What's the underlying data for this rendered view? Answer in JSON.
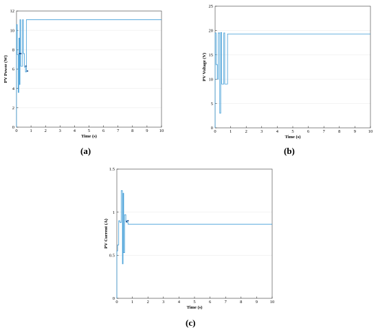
{
  "chart_data": [
    {
      "type": "line",
      "panel_label": "(a)",
      "xlabel": "Time (s)",
      "ylabel": "PV Power (W)",
      "xlim": [
        0,
        10
      ],
      "ylim": [
        0,
        12
      ],
      "xticks": [
        "0",
        "1",
        "2",
        "3",
        "4",
        "5",
        "6",
        "7",
        "8",
        "9",
        "10"
      ],
      "yticks": [
        "0",
        "2",
        "4",
        "6",
        "8",
        "10",
        "12"
      ],
      "grid": true,
      "line_color": "#3d9bd6",
      "series": [
        {
          "x": [
            0,
            0,
            0.05,
            0.05,
            0.12,
            0.12,
            0.17,
            0.17,
            0.2,
            0.2,
            0.24,
            0.24,
            0.29,
            0.29,
            0.42,
            0.42,
            0.47,
            0.47,
            0.55,
            0.55,
            0.62,
            0.62,
            0.68,
            0.68,
            0.72,
            0.72,
            0.78,
            0.78,
            10
          ],
          "y": [
            0,
            10.6,
            10.6,
            7.5,
            7.5,
            3.6,
            3.6,
            9.2,
            9.2,
            4.4,
            4.4,
            11.1,
            11.1,
            6.3,
            6.3,
            11.1,
            11.1,
            7.6,
            7.6,
            6.2,
            6.2,
            5.7,
            5.7,
            11.1,
            11.1,
            11.1,
            11.1,
            11.1,
            11.1
          ]
        }
      ],
      "markers": [
        {
          "x": 0.2,
          "y": 7.6
        },
        {
          "x": 0.3,
          "y": 7.6
        },
        {
          "x": 0.65,
          "y": 6.3
        },
        {
          "x": 0.76,
          "y": 5.8
        }
      ]
    },
    {
      "type": "line",
      "panel_label": "(b)",
      "xlabel": "Time (s)",
      "ylabel": "PV Voltage (V)",
      "xlim": [
        0,
        10
      ],
      "ylim": [
        0,
        25
      ],
      "xticks": [
        "0",
        "1",
        "2",
        "3",
        "4",
        "5",
        "6",
        "7",
        "8",
        "9",
        "10"
      ],
      "yticks": [
        "0",
        "5",
        "10",
        "15",
        "20",
        "25"
      ],
      "grid": true,
      "line_color": "#3d9bd6",
      "series": [
        {
          "x": [
            0,
            0,
            0.06,
            0.06,
            0.14,
            0.14,
            0.2,
            0.2,
            0.3,
            0.3,
            0.36,
            0.36,
            0.42,
            0.42,
            0.56,
            0.56,
            0.62,
            0.62,
            0.8,
            0.8,
            10
          ],
          "y": [
            0,
            19.5,
            19.5,
            13,
            13,
            10,
            10,
            19.5,
            19.5,
            3,
            3,
            19.6,
            19.6,
            9,
            9,
            19.5,
            19.5,
            9,
            9,
            19.3,
            19.3
          ]
        }
      ],
      "markers": []
    },
    {
      "type": "line",
      "panel_label": "(c)",
      "xlabel": "Time (s)",
      "ylabel": "PV Current (A)",
      "xlim": [
        0,
        10
      ],
      "ylim": [
        0,
        1.5
      ],
      "xticks": [
        "0",
        "1",
        "2",
        "3",
        "4",
        "5",
        "6",
        "7",
        "8",
        "9",
        "10"
      ],
      "yticks": [
        "0",
        "0.5",
        "1",
        "1.5"
      ],
      "grid": true,
      "line_color": "#3d9bd6",
      "series": [
        {
          "x": [
            0,
            0,
            0.05,
            0.05,
            0.12,
            0.12,
            0.2,
            0.2,
            0.28,
            0.28,
            0.36,
            0.36,
            0.4,
            0.4,
            0.44,
            0.44,
            0.5,
            0.5,
            0.58,
            0.58,
            0.66,
            0.66,
            0.72,
            0.72,
            0.8,
            0.8,
            10
          ],
          "y": [
            0,
            0.55,
            0.55,
            0.62,
            0.62,
            0.9,
            0.9,
            0.88,
            0.88,
            1.25,
            1.25,
            0.4,
            0.4,
            1.22,
            1.22,
            0.53,
            0.53,
            0.97,
            0.97,
            0.9,
            0.9,
            0.88,
            0.88,
            0.86,
            0.86,
            0.86,
            0.86
          ]
        }
      ],
      "markers": [
        {
          "x": 0.62,
          "y": 0.89
        },
        {
          "x": 0.72,
          "y": 0.9
        }
      ]
    }
  ]
}
